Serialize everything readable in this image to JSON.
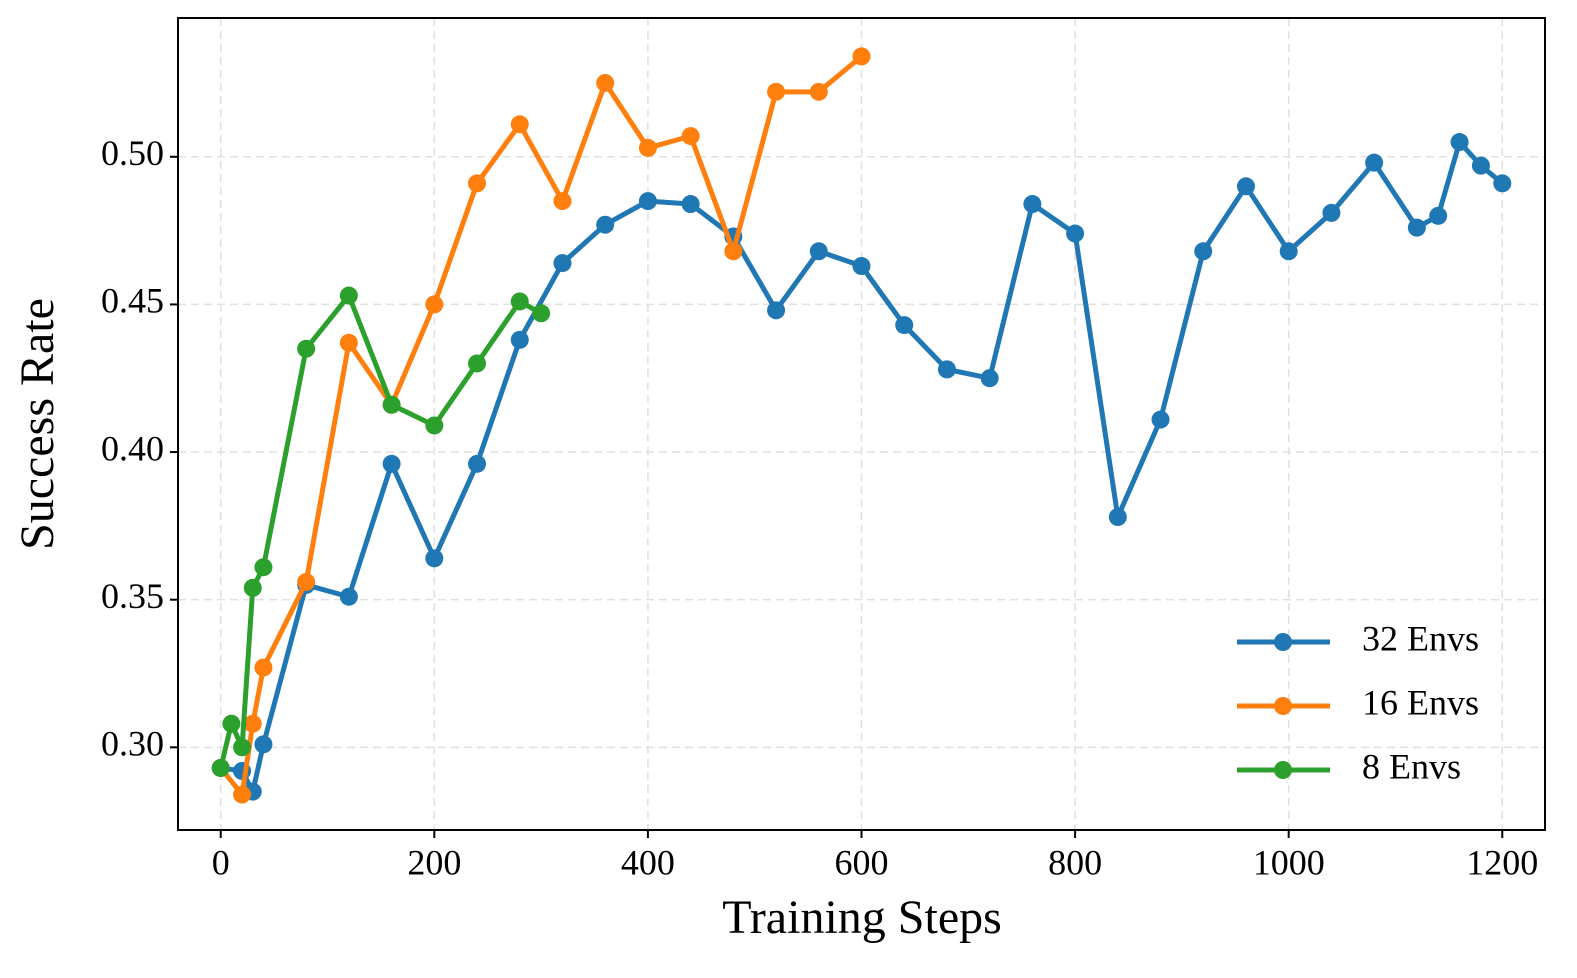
{
  "chart_data": {
    "type": "line",
    "x_label": "Training Steps",
    "y_label": "Success Rate",
    "xlim": [
      -40,
      1240
    ],
    "ylim": [
      0.272,
      0.547
    ],
    "xticks": [
      0,
      200,
      400,
      600,
      800,
      1000,
      1200
    ],
    "yticks": [
      {
        "value": 0.3,
        "label": "0.30"
      },
      {
        "value": 0.35,
        "label": "0.35"
      },
      {
        "value": 0.4,
        "label": "0.40"
      },
      {
        "value": 0.45,
        "label": "0.45"
      },
      {
        "value": 0.5,
        "label": "0.50"
      }
    ],
    "grid": true,
    "legend": "lower right",
    "series": [
      {
        "name": "32 Envs",
        "color": "#1f77b4",
        "x": [
          0,
          20,
          30,
          40,
          80,
          120,
          160,
          200,
          240,
          280,
          320,
          360,
          400,
          440,
          480,
          520,
          560,
          600,
          640,
          680,
          720,
          760,
          800,
          840,
          880,
          920,
          960,
          1000,
          1040,
          1080,
          1120,
          1140,
          1160,
          1180,
          1200
        ],
        "values": [
          0.293,
          0.292,
          0.285,
          0.301,
          0.355,
          0.351,
          0.396,
          0.364,
          0.396,
          0.438,
          0.464,
          0.477,
          0.485,
          0.484,
          0.473,
          0.448,
          0.468,
          0.463,
          0.443,
          0.428,
          0.425,
          0.484,
          0.474,
          0.378,
          0.411,
          0.468,
          0.49,
          0.468,
          0.481,
          0.498,
          0.476,
          0.48,
          0.505,
          0.497,
          0.491
        ]
      },
      {
        "name": "16 Envs",
        "color": "#ff7f0e",
        "x": [
          0,
          20,
          30,
          40,
          80,
          120,
          160,
          200,
          240,
          280,
          320,
          360,
          400,
          440,
          480,
          520,
          560,
          600
        ],
        "values": [
          0.293,
          0.284,
          0.308,
          0.327,
          0.356,
          0.437,
          0.416,
          0.45,
          0.491,
          0.511,
          0.485,
          0.525,
          0.503,
          0.507,
          0.468,
          0.522,
          0.522,
          0.534
        ]
      },
      {
        "name": "8 Envs",
        "color": "#2ca02c",
        "x": [
          0,
          10,
          20,
          30,
          40,
          80,
          120,
          160,
          200,
          240,
          280,
          300
        ],
        "values": [
          0.293,
          0.308,
          0.3,
          0.354,
          0.361,
          0.435,
          0.453,
          0.416,
          0.409,
          0.43,
          0.451,
          0.447
        ]
      }
    ]
  }
}
